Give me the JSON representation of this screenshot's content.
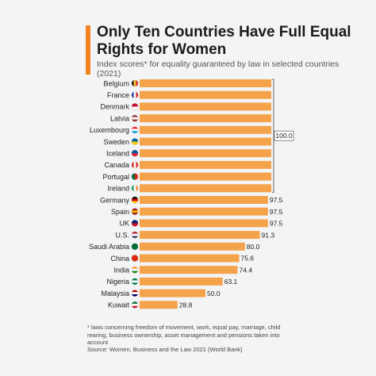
{
  "header": {
    "title": "Only Ten Countries Have Full Equal Rights for Women",
    "subtitle": "Index scores* for equality guaranteed by law in selected countries (2021)"
  },
  "footer": {
    "footnote": "* laws concerning freedom of movement, work, equal pay, marriage, child rearing, business ownership, asset management and pensions taken into account",
    "source": "Source: Women, Business and the Law 2021 (World Bank)"
  },
  "colors": {
    "bar": "#f5a34a",
    "accent": "#f58220"
  },
  "chart_data": {
    "type": "bar",
    "orientation": "horizontal",
    "title": "Only Ten Countries Have Full Equal Rights for Women",
    "subtitle": "Index scores* for equality guaranteed by law in selected countries (2021)",
    "xlim": [
      0,
      100
    ],
    "grid": false,
    "categories": [
      "Belgium",
      "France",
      "Denmark",
      "Latvia",
      "Luxembourg",
      "Sweden",
      "Iceland",
      "Canada",
      "Portugal",
      "Ireland",
      "Germany",
      "Spain",
      "UK",
      "U.S.",
      "Saudi Arabia",
      "China",
      "India",
      "Nigeria",
      "Malaysia",
      "Kuwait"
    ],
    "values": [
      100,
      100,
      100,
      100,
      100,
      100,
      100,
      100,
      100,
      100,
      97.5,
      97.5,
      97.5,
      91.3,
      80.0,
      75.6,
      74.4,
      63.1,
      50.0,
      28.8
    ],
    "value_labels": [
      "",
      "",
      "",
      "",
      "",
      "",
      "",
      "",
      "",
      "",
      "97.5",
      "97.5",
      "97.5",
      "91.3",
      "80.0",
      "75.6",
      "74.4",
      "63.1",
      "50.0",
      "28.8"
    ],
    "group_label": "100.0",
    "flag_icons": [
      "flag-belgium-icon",
      "flag-france-icon",
      "flag-denmark-icon",
      "flag-latvia-icon",
      "flag-luxembourg-icon",
      "flag-sweden-icon",
      "flag-iceland-icon",
      "flag-canada-icon",
      "flag-portugal-icon",
      "flag-ireland-icon",
      "flag-germany-icon",
      "flag-spain-icon",
      "flag-uk-icon",
      "flag-us-icon",
      "flag-saudi-arabia-icon",
      "flag-china-icon",
      "flag-india-icon",
      "flag-nigeria-icon",
      "flag-malaysia-icon",
      "flag-kuwait-icon"
    ]
  }
}
